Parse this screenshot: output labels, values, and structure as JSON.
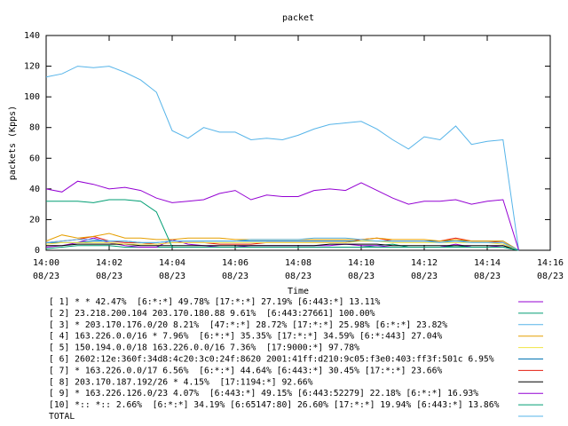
{
  "chart_data": {
    "type": "line",
    "title": "packet",
    "x_label": "Time",
    "y_label": "packets (Kpps)",
    "x": [
      0,
      0.5,
      1,
      1.5,
      2,
      2.5,
      3,
      3.5,
      4,
      4.5,
      5,
      5.5,
      6,
      6.5,
      7,
      7.5,
      8,
      8.5,
      9,
      9.5,
      10,
      10.5,
      11,
      11.5,
      12,
      12.5,
      13,
      13.5,
      14,
      14.5,
      15
    ],
    "xlim": [
      0,
      16
    ],
    "xticks": [
      {
        "value": 0,
        "label": "14:00",
        "date": "08/23"
      },
      {
        "value": 2,
        "label": "14:02",
        "date": "08/23"
      },
      {
        "value": 4,
        "label": "14:04",
        "date": "08/23"
      },
      {
        "value": 6,
        "label": "14:06",
        "date": "08/23"
      },
      {
        "value": 8,
        "label": "14:08",
        "date": "08/23"
      },
      {
        "value": 10,
        "label": "14:10",
        "date": "08/23"
      },
      {
        "value": 12,
        "label": "14:12",
        "date": "08/23"
      },
      {
        "value": 14,
        "label": "14:14",
        "date": "08/23"
      },
      {
        "value": 16,
        "label": "14:16",
        "date": "08/23"
      }
    ],
    "ylim": [
      0,
      140
    ],
    "yticks": [
      0,
      20,
      40,
      60,
      80,
      100,
      120,
      140
    ],
    "series": [
      {
        "name": "[ 1] * * 42.47%  [6:*:*] 49.78% [17:*:*] 27.19% [6:443:*] 13.11%",
        "color": "#9400d3",
        "values": [
          40,
          38,
          45,
          43,
          40,
          41,
          39,
          34,
          31,
          32,
          33,
          37,
          39,
          33,
          36,
          35,
          35,
          39,
          40,
          39,
          44,
          39,
          34,
          30,
          32,
          32,
          33,
          30,
          32,
          33,
          0
        ]
      },
      {
        "name": "[ 2] 23.218.200.104 203.170.180.88 9.61%  [6:443:27661] 100.00%",
        "color": "#009e73",
        "values": [
          32,
          32,
          32,
          31,
          33,
          33,
          32,
          25,
          2,
          2,
          2,
          2,
          2,
          2,
          2,
          2,
          2,
          2,
          2,
          2,
          2,
          2,
          2,
          2,
          2,
          2,
          2,
          2,
          2,
          2,
          0
        ]
      },
      {
        "name": "[ 3] * 203.170.176.0/20 8.21%  [47:*:*] 28.72% [17:*:*] 25.98% [6:*:*] 23.82%",
        "color": "#56b4e9",
        "values": [
          5,
          6,
          7,
          7,
          6,
          6,
          5,
          5,
          6,
          6,
          6,
          6,
          6,
          7,
          7,
          7,
          7,
          8,
          8,
          8,
          7,
          6,
          6,
          6,
          6,
          5,
          6,
          5,
          5,
          5,
          0
        ]
      },
      {
        "name": "[ 4] 163.226.0.0/16 * 7.96%  [6:*:*] 35.35% [17:*:*] 34.59% [6:*:443] 27.04%",
        "color": "#e69f00",
        "values": [
          6,
          10,
          8,
          9,
          11,
          8,
          8,
          7,
          7,
          8,
          8,
          8,
          7,
          7,
          7,
          7,
          7,
          7,
          7,
          7,
          7,
          8,
          7,
          7,
          7,
          6,
          7,
          6,
          6,
          6,
          0
        ]
      },
      {
        "name": "[ 5] 150.194.0.0/18 163.226.0.0/16 7.36%  [17:9000:*] 97.78%",
        "color": "#f0e442",
        "values": [
          4,
          5,
          5,
          5,
          5,
          4,
          4,
          4,
          5,
          5,
          5,
          5,
          5,
          5,
          5,
          5,
          5,
          5,
          5,
          5,
          6,
          6,
          5,
          5,
          5,
          5,
          5,
          5,
          5,
          4,
          0
        ]
      },
      {
        "name": "[ 6] 2602:12e:360f:34d8:4c20:3c0:24f:8620 2001:41ff:d210:9c05:f3e0:403:ff3f:501c 6.95%",
        "color": "#0072b2",
        "values": [
          5,
          5,
          5,
          6,
          6,
          6,
          5,
          5,
          6,
          6,
          6,
          6,
          6,
          6,
          6,
          6,
          6,
          6,
          6,
          6,
          6,
          6,
          6,
          6,
          6,
          6,
          6,
          6,
          6,
          6,
          0
        ]
      },
      {
        "name": "[ 7] * 163.226.0.0/17 6.56%  [6:*:*] 44.64% [6:443:*] 30.45% [17:*:*] 23.66%",
        "color": "#e51e10",
        "values": [
          5,
          6,
          7,
          9,
          6,
          5,
          5,
          4,
          5,
          5,
          5,
          4,
          4,
          4,
          5,
          5,
          5,
          5,
          5,
          5,
          7,
          8,
          6,
          6,
          6,
          6,
          8,
          6,
          6,
          5,
          0
        ]
      },
      {
        "name": "[ 8] 203.170.187.192/26 * 4.15%  [17:1194:*] 92.66%",
        "color": "#000000",
        "values": [
          3,
          3,
          4,
          4,
          4,
          4,
          3,
          3,
          3,
          3,
          3,
          3,
          3,
          3,
          3,
          3,
          3,
          3,
          4,
          4,
          4,
          4,
          3,
          3,
          3,
          3,
          3,
          3,
          3,
          3,
          0
        ]
      },
      {
        "name": "[ 9] * 163.226.126.0/23 4.07%  [6:443:*] 49.15% [6:443:52279] 22.18% [6:*:*] 16.93%",
        "color": "#9400d3",
        "values": [
          2,
          3,
          5,
          8,
          5,
          3,
          2,
          2,
          7,
          4,
          3,
          2,
          2,
          3,
          3,
          3,
          3,
          3,
          3,
          4,
          3,
          3,
          2,
          2,
          2,
          2,
          4,
          2,
          2,
          3,
          0
        ]
      },
      {
        "name": "[10] *:: *:: 2.66%  [6:*:*] 34.19% [6:65147:80] 26.60% [17:*:*] 19.94% [6:443:*] 13.86%",
        "color": "#009e73",
        "values": [
          1,
          2,
          3,
          3,
          3,
          2,
          2,
          2,
          2,
          2,
          2,
          2,
          2,
          2,
          2,
          2,
          2,
          2,
          2,
          2,
          2,
          3,
          4,
          2,
          2,
          2,
          3,
          2,
          2,
          2,
          0
        ]
      },
      {
        "name": "TOTAL",
        "color": "#56b4e9",
        "values": [
          113,
          115,
          120,
          119,
          120,
          116,
          111,
          103,
          78,
          73,
          80,
          77,
          77,
          72,
          73,
          72,
          75,
          79,
          82,
          83,
          84,
          79,
          72,
          66,
          74,
          72,
          81,
          69,
          71,
          72,
          0
        ]
      }
    ]
  }
}
